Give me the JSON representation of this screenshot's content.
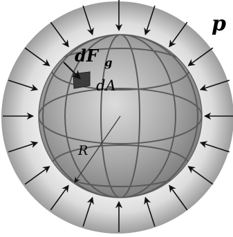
{
  "labels": {
    "pressure": "p",
    "force_main": "dF",
    "force_sub": "g",
    "area": "dA",
    "radius": "R"
  },
  "colors": {
    "outer_shell_light": "#f2f2f2",
    "outer_shell_dark": "#9a9a9a",
    "sphere_light": "#d4d4d4",
    "sphere_dark": "#7a7a7a",
    "grid_line": "#555555",
    "arrow": "#111111",
    "area_patch": "#3a3a3a"
  },
  "icons": {
    "pressure_arrows": "inward-arrow-icon",
    "area_element": "square-patch-icon"
  }
}
